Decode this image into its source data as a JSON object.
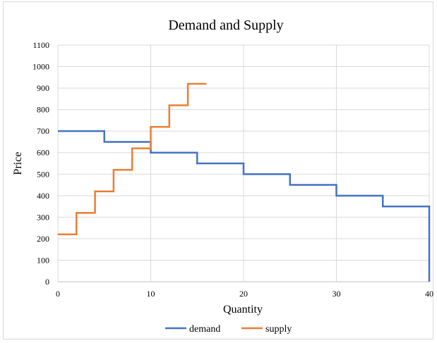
{
  "chart_data": {
    "type": "line",
    "step": true,
    "title": "Demand and Supply",
    "xlabel": "Quantity",
    "ylabel": "Price",
    "xlim": [
      0,
      40
    ],
    "ylim": [
      0,
      1100
    ],
    "xticks": [
      0,
      10,
      20,
      30,
      40
    ],
    "yticks": [
      0,
      100,
      200,
      300,
      400,
      500,
      600,
      700,
      800,
      900,
      1000,
      1100
    ],
    "grid": true,
    "legend": "bottom-center",
    "series": [
      {
        "name": "demand",
        "color": "#4472c4",
        "points": [
          [
            0,
            700
          ],
          [
            5,
            700
          ],
          [
            5,
            650
          ],
          [
            10,
            650
          ],
          [
            10,
            600
          ],
          [
            15,
            600
          ],
          [
            15,
            550
          ],
          [
            20,
            550
          ],
          [
            20,
            500
          ],
          [
            25,
            500
          ],
          [
            25,
            450
          ],
          [
            30,
            450
          ],
          [
            30,
            400
          ],
          [
            35,
            400
          ],
          [
            35,
            350
          ],
          [
            40,
            350
          ],
          [
            40,
            0
          ]
        ]
      },
      {
        "name": "supply",
        "color": "#ed7d31",
        "points": [
          [
            0,
            220
          ],
          [
            2,
            220
          ],
          [
            2,
            320
          ],
          [
            4,
            320
          ],
          [
            4,
            420
          ],
          [
            6,
            420
          ],
          [
            6,
            520
          ],
          [
            8,
            520
          ],
          [
            8,
            620
          ],
          [
            10,
            620
          ],
          [
            10,
            720
          ],
          [
            12,
            720
          ],
          [
            12,
            820
          ],
          [
            14,
            820
          ],
          [
            14,
            920
          ],
          [
            16,
            920
          ]
        ]
      }
    ]
  }
}
